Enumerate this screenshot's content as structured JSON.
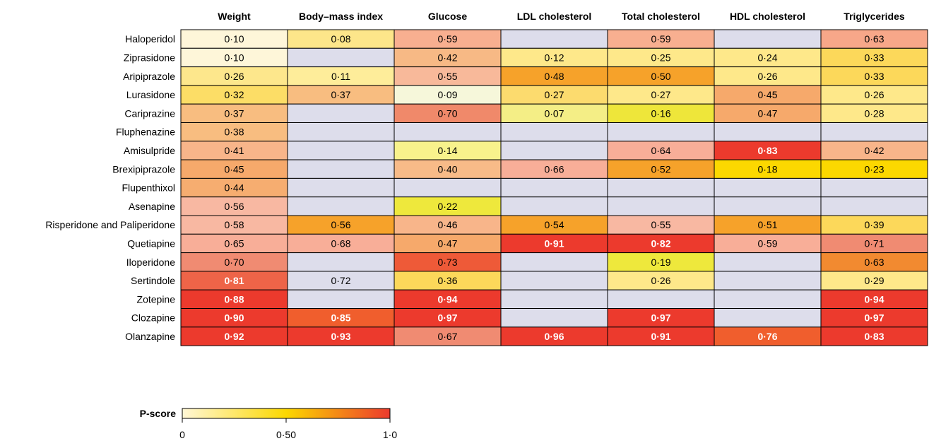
{
  "chart_data": {
    "type": "heatmap",
    "columns": [
      "Weight",
      "Body–mass index",
      "Glucose",
      "LDL cholesterol",
      "Total cholesterol",
      "HDL cholesterol",
      "Triglycerides"
    ],
    "rows": [
      "Haloperidol",
      "Ziprasidone",
      "Aripiprazole",
      "Lurasidone",
      "Cariprazine",
      "Fluphenazine",
      "Amisulpride",
      "Brexipiprazole",
      "Flupenthixol",
      "Asenapine",
      "Risperidone and Paliperidone",
      "Quetiapine",
      "Iloperidone",
      "Sertindole",
      "Zotepine",
      "Clozapine",
      "Olanzapine"
    ],
    "values": [
      [
        0.1,
        0.08,
        0.59,
        null,
        0.59,
        null,
        0.63
      ],
      [
        0.1,
        null,
        0.42,
        0.12,
        0.25,
        0.24,
        0.33
      ],
      [
        0.26,
        0.11,
        0.55,
        0.48,
        0.5,
        0.26,
        0.33
      ],
      [
        0.32,
        0.37,
        0.09,
        0.27,
        0.27,
        0.45,
        0.26
      ],
      [
        0.37,
        null,
        0.7,
        0.07,
        0.16,
        0.47,
        0.28
      ],
      [
        0.38,
        null,
        null,
        null,
        null,
        null,
        null
      ],
      [
        0.41,
        null,
        0.14,
        null,
        0.64,
        0.83,
        0.42
      ],
      [
        0.45,
        null,
        0.4,
        0.66,
        0.52,
        0.18,
        0.23
      ],
      [
        0.44,
        null,
        null,
        null,
        null,
        null,
        null
      ],
      [
        0.56,
        null,
        0.22,
        null,
        null,
        null,
        null
      ],
      [
        0.58,
        0.56,
        0.46,
        0.54,
        0.55,
        0.51,
        0.39
      ],
      [
        0.65,
        0.68,
        0.47,
        0.91,
        0.82,
        0.59,
        0.71
      ],
      [
        0.7,
        null,
        0.73,
        null,
        0.19,
        null,
        0.63
      ],
      [
        0.81,
        0.72,
        0.36,
        null,
        0.26,
        null,
        0.29
      ],
      [
        0.88,
        null,
        0.94,
        null,
        null,
        null,
        0.94
      ],
      [
        0.9,
        0.85,
        0.97,
        null,
        0.97,
        null,
        0.97
      ],
      [
        0.92,
        0.93,
        0.67,
        0.96,
        0.91,
        0.76,
        0.83
      ]
    ],
    "labels": [
      [
        "0·10",
        "0·08",
        "0·59",
        "",
        "0·59",
        "",
        "0·63"
      ],
      [
        "0·10",
        "",
        "0·42",
        "0·12",
        "0·25",
        "0·24",
        "0·33"
      ],
      [
        "0·26",
        "0·11",
        "0·55",
        "0·48",
        "0·50",
        "0·26",
        "0·33"
      ],
      [
        "0·32",
        "0·37",
        "0·09",
        "0·27",
        "0·27",
        "0·45",
        "0·26"
      ],
      [
        "0·37",
        "",
        "0·70",
        "0·07",
        "0·16",
        "0·47",
        "0·28"
      ],
      [
        "0·38",
        "",
        "",
        "",
        "",
        "",
        ""
      ],
      [
        "0·41",
        "",
        "0·14",
        "",
        "0·64",
        "0·83",
        "0·42"
      ],
      [
        "0·45",
        "",
        "0·40",
        "0·66",
        "0·52",
        "0·18",
        "0·23"
      ],
      [
        "0·44",
        "",
        "",
        "",
        "",
        "",
        ""
      ],
      [
        "0·56",
        "",
        "0·22",
        "",
        "",
        "",
        ""
      ],
      [
        "0·58",
        "0·56",
        "0·46",
        "0·54",
        "0·55",
        "0·51",
        "0·39"
      ],
      [
        "0·65",
        "0·68",
        "0·47",
        "0·91",
        "0·82",
        "0·59",
        "0·71"
      ],
      [
        "0·70",
        "",
        "0·73",
        "",
        "0·19",
        "",
        "0·63"
      ],
      [
        "0·81",
        "0·72",
        "0·36",
        "",
        "0·26",
        "",
        "0·29"
      ],
      [
        "0·88",
        "",
        "0·94",
        "",
        "",
        "",
        "0·94"
      ],
      [
        "0·90",
        "0·85",
        "0·97",
        "",
        "0·97",
        "",
        "0·97"
      ],
      [
        "0·92",
        "0·93",
        "0·67",
        "0·96",
        "0·91",
        "0·76",
        "0·83"
      ]
    ],
    "colors": [
      [
        "#FEF6D9",
        "#FDE68A",
        "#F8AF90",
        "#DDDDEB",
        "#F8AF90",
        "#DDDDEB",
        "#F7A789"
      ],
      [
        "#FEF6D9",
        "#DDDDEB",
        "#F7B985",
        "#FEE88A",
        "#FEE88A",
        "#FEE88A",
        "#FCD85A"
      ],
      [
        "#FDE78C",
        "#FEED9A",
        "#F8B99A",
        "#F6A22A",
        "#F6A22A",
        "#FEE88A",
        "#FCD85A"
      ],
      [
        "#FCDD66",
        "#F8BD80",
        "#F6F7DA",
        "#FCDB6E",
        "#FEE88A",
        "#F6A96B",
        "#FEE88A"
      ],
      [
        "#F8BD80",
        "#DDDDEB",
        "#F0896A",
        "#F4EE86",
        "#EEE63A",
        "#F6A96B",
        "#FEE88A"
      ],
      [
        "#F8BD80",
        "#DDDDEB",
        "#DDDDEB",
        "#DDDDEB",
        "#DDDDEB",
        "#DDDDEB",
        "#DDDDEB"
      ],
      [
        "#F8B58A",
        "#DDDDEB",
        "#F8F28C",
        "#DDDDEB",
        "#F8AE98",
        "#EC3A2D",
        "#F8B58A"
      ],
      [
        "#F6A96B",
        "#DDDDEB",
        "#F8BB88",
        "#F8AE98",
        "#F6A22A",
        "#FCD800",
        "#FCD800"
      ],
      [
        "#F6AD70",
        "#DDDDEB",
        "#DDDDEB",
        "#DDDDEB",
        "#DDDDEB",
        "#DDDDEB",
        "#DDDDEB"
      ],
      [
        "#F8B8A2",
        "#DDDDEB",
        "#EEE83C",
        "#DDDDEB",
        "#DDDDEB",
        "#DDDDEB",
        "#DDDDEB"
      ],
      [
        "#F8B8A2",
        "#F6A22A",
        "#F8B58A",
        "#F6A22A",
        "#F8B8A2",
        "#F6A22A",
        "#FCD85A"
      ],
      [
        "#F8AE98",
        "#F8AE98",
        "#F6A96B",
        "#EC3A2D",
        "#EC3A2D",
        "#F8AE98",
        "#F08B72"
      ],
      [
        "#F08B72",
        "#DDDDEB",
        "#EE5A38",
        "#DDDDEB",
        "#EEE83C",
        "#DDDDEB",
        "#F28A30"
      ],
      [
        "#EE6448",
        "#DDDDEB",
        "#FCD85A",
        "#DDDDEB",
        "#FEE88A",
        "#DDDDEB",
        "#FEE88A"
      ],
      [
        "#EC3A2D",
        "#DDDDEB",
        "#EC3A2D",
        "#DDDDEB",
        "#DDDDEB",
        "#DDDDEB",
        "#EC3A2D"
      ],
      [
        "#EC3A2D",
        "#F05E2D",
        "#EC3A2D",
        "#DDDDEB",
        "#EC3A2D",
        "#DDDDEB",
        "#EC3A2D"
      ],
      [
        "#EC3A2D",
        "#EC3A2D",
        "#F08B72",
        "#EC3A2D",
        "#EC3A2D",
        "#F05E2D",
        "#EC3A2D"
      ]
    ],
    "bold_white_threshold": 0.75,
    "missing_color": "#DDDDEB",
    "legend": {
      "title": "P-score",
      "range": [
        0,
        1
      ],
      "ticks": [
        {
          "value": 0,
          "label": "0"
        },
        {
          "value": 0.5,
          "label": "0·50"
        },
        {
          "value": 1,
          "label": "1·0"
        }
      ],
      "colors": [
        "#FFF7D6",
        "#FCD800",
        "#EC3A2D"
      ],
      "placement": "bottom-left"
    }
  }
}
